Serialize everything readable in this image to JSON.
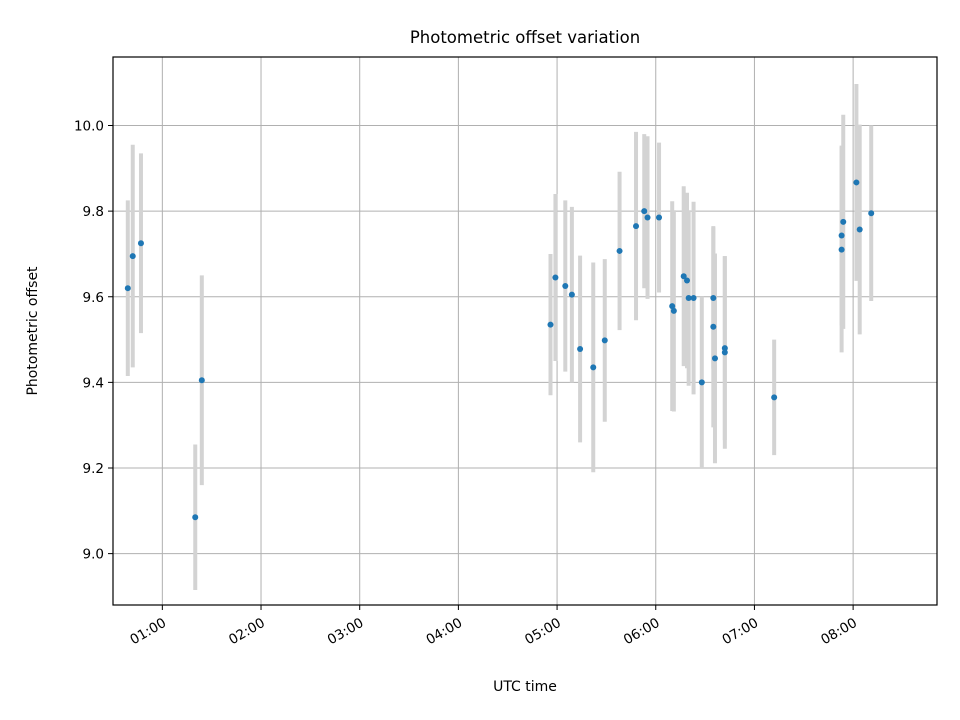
{
  "chart_data": {
    "type": "scatter",
    "title": "Photometric offset variation",
    "xlabel": "UTC time",
    "ylabel": "Photometric offset",
    "x_ticks": [
      "01:00",
      "02:00",
      "03:00",
      "04:00",
      "05:00",
      "06:00",
      "07:00",
      "08:00"
    ],
    "y_ticks": [
      9.0,
      9.2,
      9.4,
      9.6,
      9.8,
      10.0
    ],
    "xlim": [
      "00:30",
      "08:51"
    ],
    "ylim": [
      8.88,
      10.16
    ],
    "grid": true,
    "colors": {
      "points": "#1f77b4",
      "error_bars": "#d3d3d3"
    },
    "points": [
      {
        "t": "00:39",
        "y": 9.62,
        "err": 0.205
      },
      {
        "t": "00:42",
        "y": 9.695,
        "err": 0.26
      },
      {
        "t": "00:47",
        "y": 9.725,
        "err": 0.21
      },
      {
        "t": "01:20",
        "y": 9.085,
        "err": 0.17
      },
      {
        "t": "01:24",
        "y": 9.405,
        "err": 0.245
      },
      {
        "t": "04:56",
        "y": 9.535,
        "err": 0.165
      },
      {
        "t": "04:59",
        "y": 9.645,
        "err": 0.195
      },
      {
        "t": "05:05",
        "y": 9.625,
        "err": 0.2
      },
      {
        "t": "05:09",
        "y": 9.605,
        "err": 0.205
      },
      {
        "t": "05:14",
        "y": 9.478,
        "err": 0.218
      },
      {
        "t": "05:22",
        "y": 9.435,
        "err": 0.245
      },
      {
        "t": "05:29",
        "y": 9.498,
        "err": 0.19
      },
      {
        "t": "05:38",
        "y": 9.707,
        "err": 0.185
      },
      {
        "t": "05:48",
        "y": 9.765,
        "err": 0.22
      },
      {
        "t": "05:53",
        "y": 9.8,
        "err": 0.18
      },
      {
        "t": "05:55",
        "y": 9.785,
        "err": 0.19
      },
      {
        "t": "06:02",
        "y": 9.785,
        "err": 0.175
      },
      {
        "t": "06:10",
        "y": 9.578,
        "err": 0.245
      },
      {
        "t": "06:11",
        "y": 9.567,
        "err": 0.235
      },
      {
        "t": "06:17",
        "y": 9.648,
        "err": 0.21
      },
      {
        "t": "06:19",
        "y": 9.638,
        "err": 0.205
      },
      {
        "t": "06:20",
        "y": 9.597,
        "err": 0.205
      },
      {
        "t": "06:23",
        "y": 9.597,
        "err": 0.225
      },
      {
        "t": "06:28",
        "y": 9.4,
        "err": 0.2
      },
      {
        "t": "06:35",
        "y": 9.597,
        "err": 0.165
      },
      {
        "t": "06:35",
        "y": 9.53,
        "err": 0.235
      },
      {
        "t": "06:36",
        "y": 9.456,
        "err": 0.245
      },
      {
        "t": "06:42",
        "y": 9.47,
        "err": 0.225
      },
      {
        "t": "06:42",
        "y": 9.48,
        "err": 0.215
      },
      {
        "t": "07:12",
        "y": 9.365,
        "err": 0.135
      },
      {
        "t": "07:53",
        "y": 9.743,
        "err": 0.21
      },
      {
        "t": "07:53",
        "y": 9.71,
        "err": 0.24
      },
      {
        "t": "07:54",
        "y": 9.775,
        "err": 0.25
      },
      {
        "t": "08:02",
        "y": 9.867,
        "err": 0.23
      },
      {
        "t": "08:04",
        "y": 9.757,
        "err": 0.245
      },
      {
        "t": "08:11",
        "y": 9.795,
        "err": 0.205
      }
    ]
  }
}
